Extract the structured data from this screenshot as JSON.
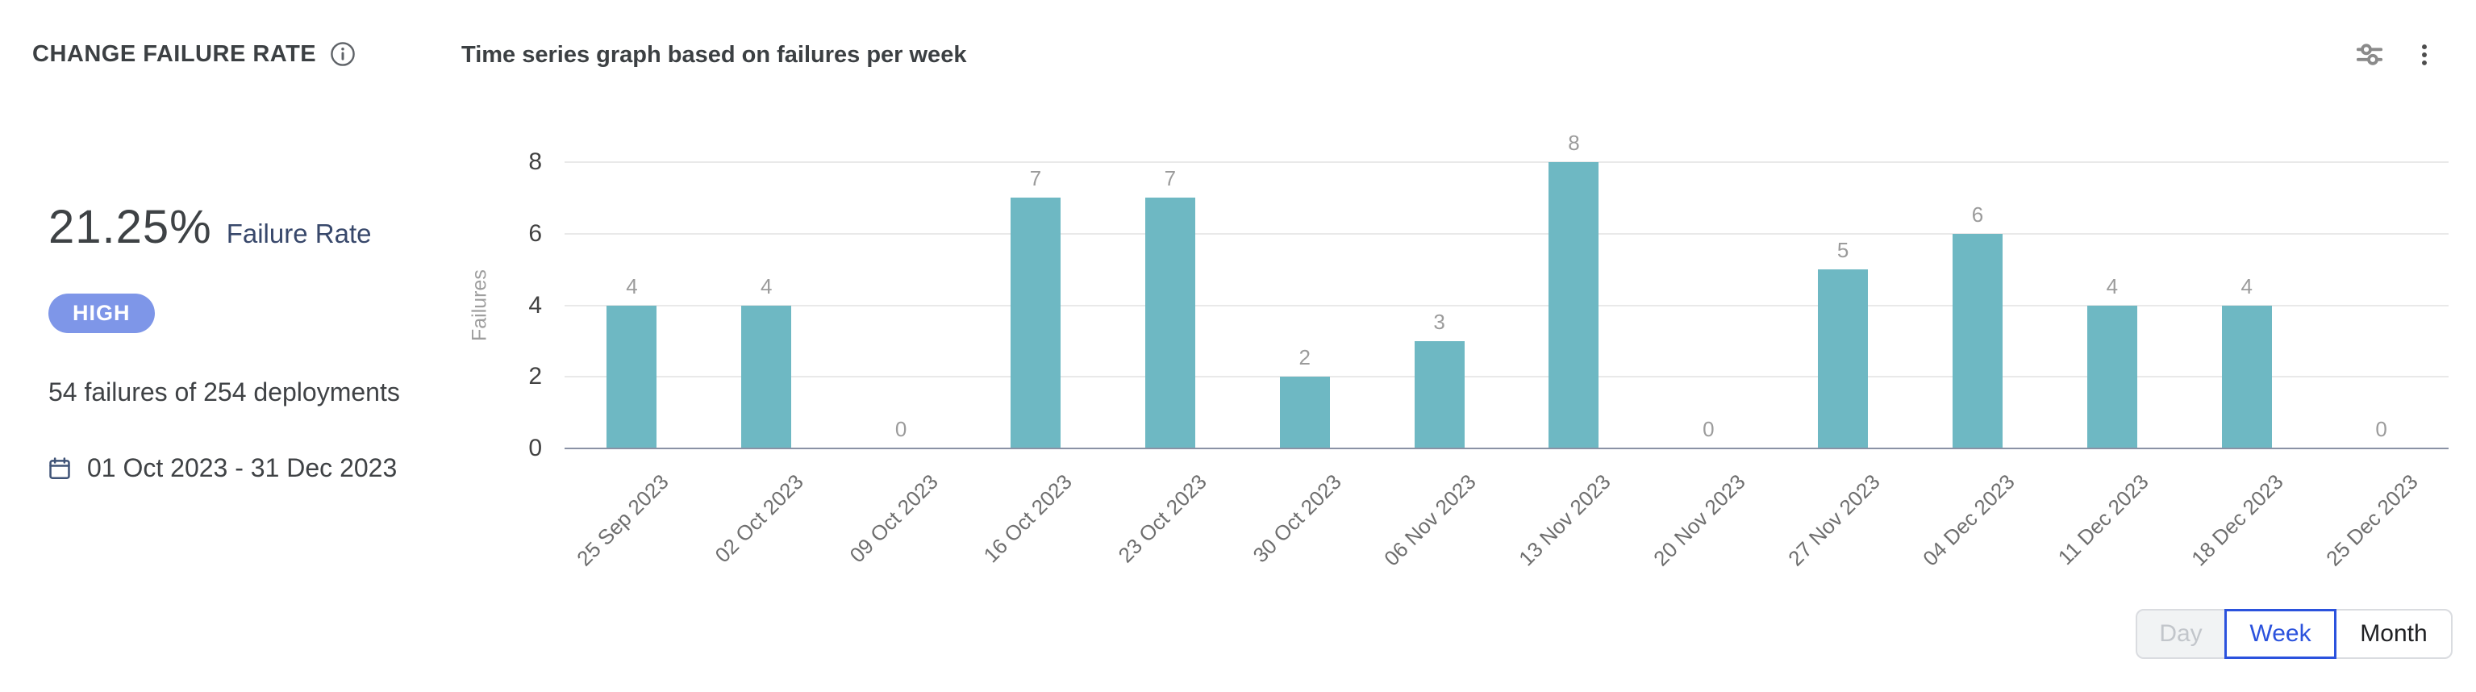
{
  "widget": {
    "title": "CHANGE FAILURE RATE",
    "subtitle": "Time series graph based on failures per week"
  },
  "stats": {
    "rate_value": "21.25%",
    "rate_label": "Failure Rate",
    "severity": "HIGH",
    "summary": "54 failures of 254 deployments",
    "date_range": "01 Oct 2023 - 31 Dec 2023"
  },
  "chart_data": {
    "type": "bar",
    "title": "Time series graph based on failures per week",
    "categories": [
      "25 Sep 2023",
      "02 Oct 2023",
      "09 Oct 2023",
      "16 Oct 2023",
      "23 Oct 2023",
      "30 Oct 2023",
      "06 Nov 2023",
      "13 Nov 2023",
      "20 Nov 2023",
      "27 Nov 2023",
      "04 Dec 2023",
      "11 Dec 2023",
      "18 Dec 2023",
      "25 Dec 2023"
    ],
    "values": [
      4,
      4,
      0,
      7,
      7,
      2,
      3,
      8,
      0,
      5,
      6,
      4,
      4,
      0
    ],
    "xlabel": "",
    "ylabel": "Failures",
    "yticks": [
      0,
      2,
      4,
      6,
      8
    ],
    "ylim": [
      0,
      8
    ],
    "grid": true,
    "legend": "none",
    "bar_color": "#6EB8C3",
    "value_label_color": "#9B9B9B"
  },
  "controls": {
    "granularity": [
      {
        "label": "Day",
        "state": "disabled"
      },
      {
        "label": "Week",
        "state": "selected"
      },
      {
        "label": "Month",
        "state": "default"
      }
    ]
  },
  "colors": {
    "bar": "#6EB8C3",
    "badge_bg": "#7E96E8",
    "accent_blue": "#2B52DD",
    "text_dark": "#3C4043",
    "navy_label": "#38486B",
    "gridline": "#E9E9E9",
    "axis_line": "#8A92A5"
  }
}
